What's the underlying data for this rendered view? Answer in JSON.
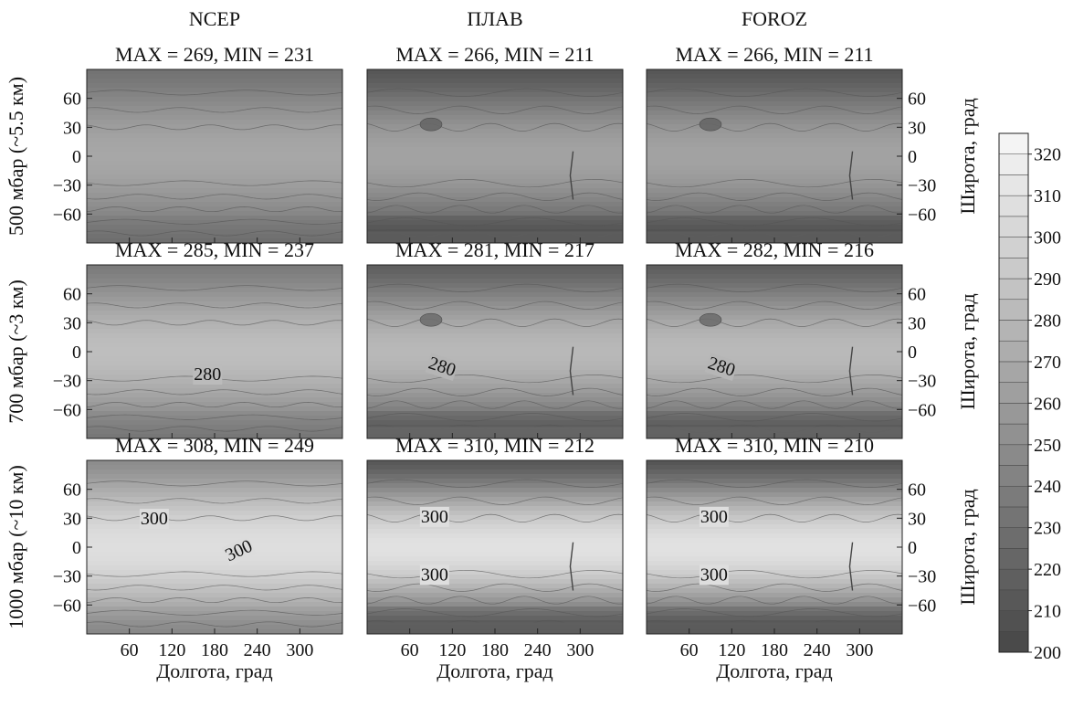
{
  "chart_data": {
    "type": "heatmap",
    "columns": [
      "NCEP",
      "ПЛАВ",
      "FOROZ"
    ],
    "rows": [
      "500 мбар (~5.5 км)",
      "700 мбар (~3 км)",
      "1000 мбар (~10 км)"
    ],
    "xlabel": "Долгота, град",
    "ylabel_right": "Широта, град",
    "x_ticks": [
      60,
      120,
      180,
      240,
      300
    ],
    "y_ticks": [
      60,
      30,
      0,
      -30,
      -60
    ],
    "xlim": [
      0,
      360
    ],
    "ylim": [
      -90,
      90
    ],
    "colorbar": {
      "ticks": [
        320,
        310,
        300,
        290,
        280,
        270,
        260,
        250,
        240,
        230,
        220,
        210,
        200
      ],
      "range": [
        200,
        325
      ],
      "levels_step": 5
    },
    "panels": [
      {
        "row": 0,
        "col": 0,
        "subtitle": "MAX = 269, MIN = 231",
        "max": 269,
        "min": 231,
        "contour_labels": []
      },
      {
        "row": 0,
        "col": 1,
        "subtitle": "MAX = 266, MIN = 211",
        "max": 266,
        "min": 211,
        "contour_labels": []
      },
      {
        "row": 0,
        "col": 2,
        "subtitle": "MAX = 266, MIN = 211",
        "max": 266,
        "min": 211,
        "contour_labels": []
      },
      {
        "row": 1,
        "col": 0,
        "subtitle": "MAX = 285, MIN = 237",
        "max": 285,
        "min": 237,
        "contour_labels": [
          {
            "text": "280",
            "lon": 170,
            "lat": -25
          }
        ]
      },
      {
        "row": 1,
        "col": 1,
        "subtitle": "MAX = 281, MIN = 217",
        "max": 281,
        "min": 217,
        "contour_labels": [
          {
            "text": "280",
            "lon": 105,
            "lat": -17
          }
        ]
      },
      {
        "row": 1,
        "col": 2,
        "subtitle": "MAX = 282, MIN = 216",
        "max": 282,
        "min": 216,
        "contour_labels": [
          {
            "text": "280",
            "lon": 105,
            "lat": -17
          }
        ]
      },
      {
        "row": 2,
        "col": 0,
        "subtitle": "MAX = 308, MIN = 249",
        "max": 308,
        "min": 249,
        "contour_labels": [
          {
            "text": "300",
            "lon": 95,
            "lat": 28
          },
          {
            "text": "300",
            "lon": 215,
            "lat": -5
          }
        ]
      },
      {
        "row": 2,
        "col": 1,
        "subtitle": "MAX = 310, MIN = 212",
        "max": 310,
        "min": 212,
        "contour_labels": [
          {
            "text": "300",
            "lon": 95,
            "lat": 30
          },
          {
            "text": "300",
            "lon": 95,
            "lat": -30
          }
        ]
      },
      {
        "row": 2,
        "col": 2,
        "subtitle": "MAX = 310, MIN = 210",
        "max": 310,
        "min": 210,
        "contour_labels": [
          {
            "text": "300",
            "lon": 95,
            "lat": 30
          },
          {
            "text": "300",
            "lon": 95,
            "lat": -30
          }
        ]
      }
    ]
  }
}
